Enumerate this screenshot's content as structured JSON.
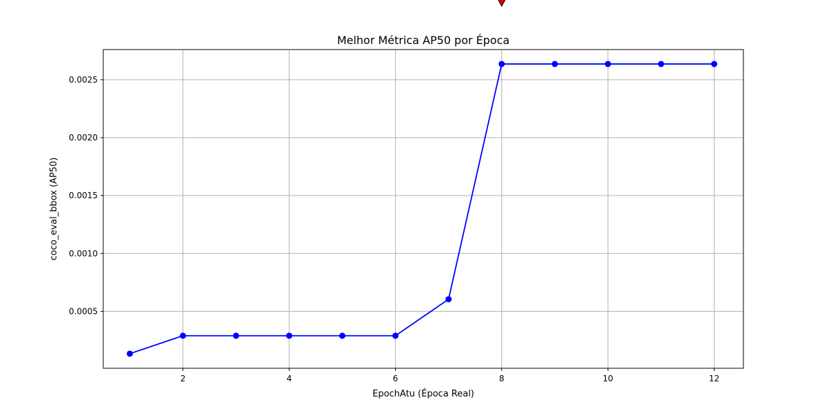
{
  "chart_data": {
    "type": "line",
    "title": "Melhor Métrica AP50 por Época",
    "xlabel": "EpochAtu (Época Real)",
    "ylabel": "coco_eval_bbox (AP50)",
    "xlim": [
      0.5,
      12.55
    ],
    "ylim": [
      9.2e-06,
      0.0027605
    ],
    "xticks": [
      2,
      4,
      6,
      8,
      10,
      12
    ],
    "xtick_labels": [
      "2",
      "4",
      "6",
      "8",
      "10",
      "12"
    ],
    "yticks": [
      0.0005,
      0.001,
      0.0015,
      0.002,
      0.0025
    ],
    "ytick_labels": [
      "0.0005",
      "0.0010",
      "0.0015",
      "0.0020",
      "0.0025"
    ],
    "grid": true,
    "series": [
      {
        "color": "#0000ff",
        "marker": "circle",
        "x": [
          1,
          2,
          3,
          4,
          5,
          6,
          7,
          8,
          9,
          10,
          11,
          12
        ],
        "y": [
          0.000135,
          0.00029,
          0.00029,
          0.00029,
          0.00029,
          0.00029,
          0.000605,
          0.002636,
          0.002636,
          0.002636,
          0.002636,
          0.002636
        ]
      }
    ],
    "annotation_marker": {
      "color": "#e00000",
      "x": 8
    }
  }
}
